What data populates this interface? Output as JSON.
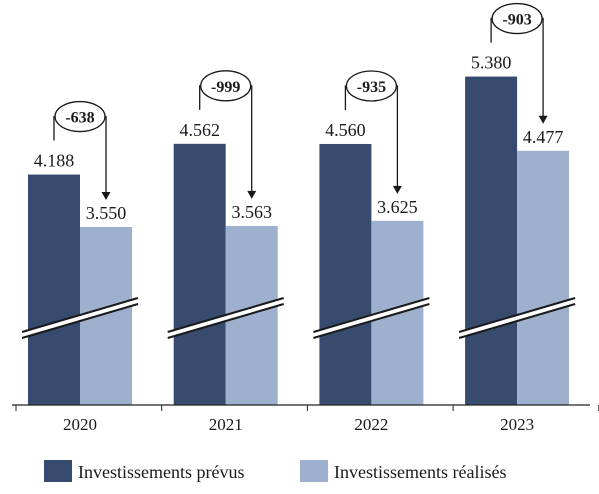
{
  "chart_data": {
    "type": "bar",
    "categories": [
      "2020",
      "2021",
      "2022",
      "2023"
    ],
    "series": [
      {
        "name": "Investissements prévus",
        "values": [
          4188,
          4562,
          4560,
          5380
        ],
        "labels": [
          "4.188",
          "4.562",
          "4.560",
          "5.380"
        ],
        "color": "#364b6e"
      },
      {
        "name": "Investissements réalisés",
        "values": [
          3550,
          3563,
          3625,
          4477
        ],
        "labels": [
          "3.550",
          "3.563",
          "3.625",
          "4.477"
        ],
        "color": "#9db0cd"
      }
    ],
    "differences": [
      "-638",
      "-999",
      "-935",
      "-903"
    ],
    "axis_break": true,
    "legend_position": "bottom",
    "title": "",
    "xlabel": "",
    "ylabel": ""
  }
}
